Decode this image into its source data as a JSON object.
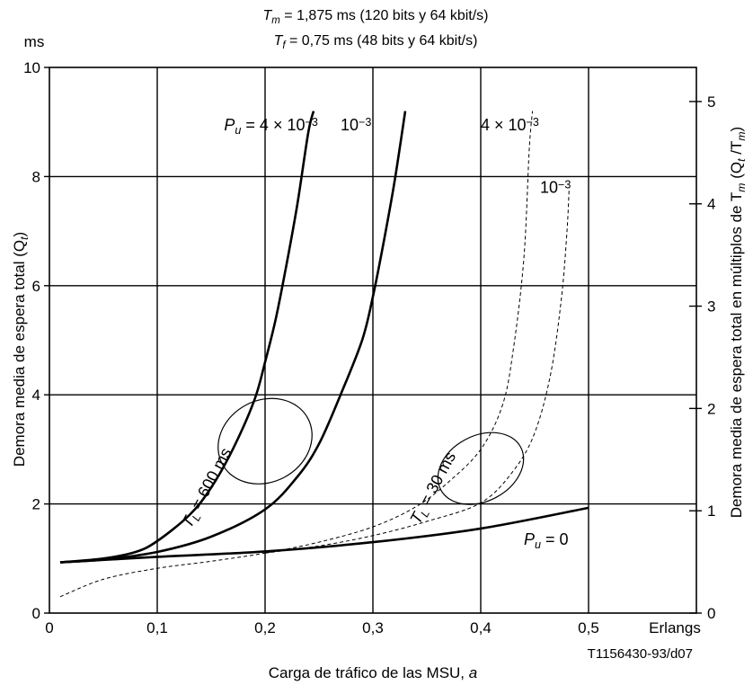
{
  "chart_data": {
    "type": "line",
    "header_lines": [
      {
        "sym": "T",
        "sub": "m",
        "rest": " = 1,875 ms (120 bits y 64 kbit/s)"
      },
      {
        "sym": "T",
        "sub": "f",
        "rest": " = 0,75 ms (48 bits y 64 kbit/s)"
      }
    ],
    "y_unit": "ms",
    "xlabel": "Carga de tráfico de las MSU, ",
    "xlabel_var": "a",
    "x_unit": "Erlangs",
    "ylabel_left": "Demora media de espera total (Q",
    "ylabel_left_sub": "t",
    "ylabel_left_end": ")",
    "ylabel_right": "Demora media de espera total en múltiplos de T",
    "ylabel_right_sub": "m",
    "ylabel_right_paren": " (Q",
    "ylabel_right_sub2": "t",
    "ylabel_right_mid": " /T",
    "ylabel_right_sub3": "m",
    "ylabel_right_end": ")",
    "figure_id": "T1156430-93/d07",
    "xlim": [
      0,
      0.6
    ],
    "ylim": [
      0,
      10
    ],
    "ylim_right": [
      0,
      5.3333
    ],
    "x_ticks": [
      {
        "v": 0,
        "t": "0"
      },
      {
        "v": 0.1,
        "t": "0,1"
      },
      {
        "v": 0.2,
        "t": "0,2"
      },
      {
        "v": 0.3,
        "t": "0,3"
      },
      {
        "v": 0.4,
        "t": "0,4"
      },
      {
        "v": 0.5,
        "t": "0,5"
      }
    ],
    "y_ticks": [
      0,
      2,
      4,
      6,
      8,
      10
    ],
    "y_ticks_right": [
      0,
      1,
      2,
      3,
      4,
      5
    ],
    "grid": true,
    "series": [
      {
        "name": "",
        "style": "solid",
        "points": [
          [
            0.01,
            0.93
          ],
          [
            0.05,
            1.0
          ],
          [
            0.08,
            1.12
          ],
          [
            0.1,
            1.32
          ],
          [
            0.13,
            1.8
          ],
          [
            0.15,
            2.3
          ],
          [
            0.17,
            3.0
          ],
          [
            0.19,
            3.9
          ],
          [
            0.2,
            4.6
          ],
          [
            0.21,
            5.4
          ],
          [
            0.22,
            6.4
          ],
          [
            0.23,
            7.5
          ],
          [
            0.24,
            8.8
          ],
          [
            0.245,
            9.2
          ]
        ]
      },
      {
        "name": "",
        "style": "solid",
        "points": [
          [
            0.01,
            0.93
          ],
          [
            0.05,
            0.98
          ],
          [
            0.1,
            1.12
          ],
          [
            0.15,
            1.4
          ],
          [
            0.2,
            1.9
          ],
          [
            0.23,
            2.5
          ],
          [
            0.25,
            3.1
          ],
          [
            0.27,
            4.0
          ],
          [
            0.29,
            5.0
          ],
          [
            0.3,
            5.8
          ],
          [
            0.31,
            6.8
          ],
          [
            0.32,
            7.9
          ],
          [
            0.33,
            9.2
          ]
        ]
      },
      {
        "name": "",
        "style": "dashed",
        "points": [
          [
            0.01,
            0.3
          ],
          [
            0.05,
            0.62
          ],
          [
            0.1,
            0.82
          ],
          [
            0.15,
            0.95
          ],
          [
            0.2,
            1.1
          ],
          [
            0.25,
            1.3
          ],
          [
            0.3,
            1.58
          ],
          [
            0.34,
            1.95
          ],
          [
            0.37,
            2.4
          ],
          [
            0.4,
            3.0
          ],
          [
            0.42,
            3.8
          ],
          [
            0.43,
            4.8
          ],
          [
            0.44,
            6.5
          ],
          [
            0.445,
            8.5
          ],
          [
            0.448,
            9.2
          ]
        ]
      },
      {
        "name": "",
        "style": "dashed",
        "points": [
          [
            0.2,
            1.1
          ],
          [
            0.25,
            1.23
          ],
          [
            0.3,
            1.42
          ],
          [
            0.35,
            1.68
          ],
          [
            0.4,
            2.02
          ],
          [
            0.43,
            2.6
          ],
          [
            0.45,
            3.3
          ],
          [
            0.465,
            4.4
          ],
          [
            0.475,
            5.8
          ],
          [
            0.48,
            7.0
          ],
          [
            0.482,
            7.8
          ]
        ]
      },
      {
        "name": "",
        "style": "solid",
        "points": [
          [
            0.01,
            0.93
          ],
          [
            0.1,
            1.03
          ],
          [
            0.2,
            1.13
          ],
          [
            0.3,
            1.3
          ],
          [
            0.4,
            1.55
          ],
          [
            0.5,
            1.93
          ]
        ]
      }
    ],
    "labels": [
      {
        "id": "pu-4e3",
        "x": 0.162,
        "y": 8.85,
        "text": "P",
        "sub": "u",
        "rest": " =  4 × 10",
        "sup": "−3"
      },
      {
        "id": "pu-1e3a",
        "x": 0.27,
        "y": 8.85,
        "text": "10",
        "sup": "−3"
      },
      {
        "id": "pu-4e3b",
        "x": 0.4,
        "y": 8.85,
        "text": "4 × 10",
        "sup": "−3"
      },
      {
        "id": "pu-1e3b",
        "x": 0.455,
        "y": 7.7,
        "text": "10",
        "sup": "−3"
      },
      {
        "id": "pu-0",
        "x": 0.44,
        "y": 1.25,
        "text": "P",
        "sub": "u",
        "rest": " = 0"
      }
    ],
    "rotated_labels": [
      {
        "id": "tl-600",
        "x": 0.15,
        "y": 2.25,
        "text": "T",
        "sub": "L",
        "rest": " = 600 ms"
      },
      {
        "id": "tl-30",
        "x": 0.36,
        "y": 2.25,
        "text": "T",
        "sub": "L",
        "rest": " = 30 ms"
      }
    ],
    "group_ellipses": [
      {
        "id": "e600",
        "cx": 0.2,
        "cy": 3.15,
        "rx": 0.045,
        "ry": 0.75,
        "rot": -28
      },
      {
        "id": "e30",
        "cx": 0.4,
        "cy": 2.65,
        "rx": 0.042,
        "ry": 0.6,
        "rot": -28
      }
    ]
  }
}
